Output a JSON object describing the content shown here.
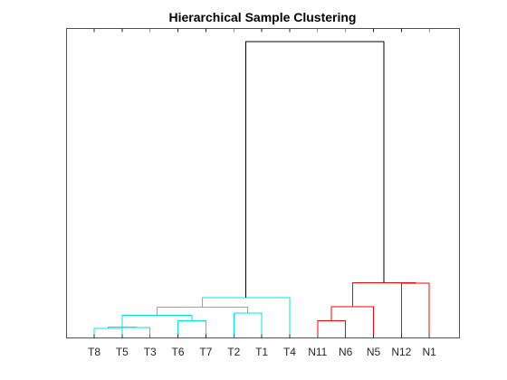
{
  "chart_data": {
    "type": "dendrogram",
    "title": "Hierarchical Sample Clustering",
    "leaves": [
      "T8",
      "T5",
      "T3",
      "T6",
      "T7",
      "T2",
      "T1",
      "T4",
      "N11",
      "N6",
      "N5",
      "N12",
      "N1"
    ],
    "ylim": [
      0,
      1
    ],
    "y_ticks_shown": false,
    "grid": false,
    "colors": {
      "cluster_T": "#00e5e5",
      "cluster_N": "#ff0000",
      "root": "#000000",
      "axes": "#262626"
    },
    "links": [
      {
        "children": [
          "T8",
          "T5"
        ],
        "height": 0.032,
        "color": "cluster_T"
      },
      {
        "children": [
          "T5",
          "T3"
        ],
        "height": 0.035,
        "color": "cluster_T"
      },
      {
        "children": [
          "T8-T5",
          "T5-T3"
        ],
        "height": 0.037,
        "color": "cluster_T"
      },
      {
        "children": [
          "T6",
          "T7"
        ],
        "height": 0.057,
        "color": "cluster_T"
      },
      {
        "children": [
          "T8-T5-T3",
          "T6-T7"
        ],
        "height": 0.075,
        "color": "cluster_T"
      },
      {
        "children": [
          "T2",
          "T1"
        ],
        "height": 0.083,
        "color": "cluster_T"
      },
      {
        "children": [
          "T8-T7",
          "T2-T1"
        ],
        "height": 0.103,
        "color": "cluster_T"
      },
      {
        "children": [
          "T8-T1",
          "T4"
        ],
        "height": 0.135,
        "color": "cluster_T"
      },
      {
        "children": [
          "N11",
          "N6"
        ],
        "height": 0.057,
        "color": "cluster_N"
      },
      {
        "children": [
          "N11-N6",
          "N5"
        ],
        "height": 0.104,
        "color": "cluster_N"
      },
      {
        "children": [
          "N11-N5",
          "N12-N1"
        ],
        "height": 0.185,
        "color": "cluster_N"
      },
      {
        "children": [
          "N12",
          "N1"
        ],
        "height": 0.183,
        "color": "cluster_N"
      },
      {
        "children": [
          "T-cluster",
          "N-cluster"
        ],
        "height": 0.99,
        "color": "root"
      }
    ]
  }
}
